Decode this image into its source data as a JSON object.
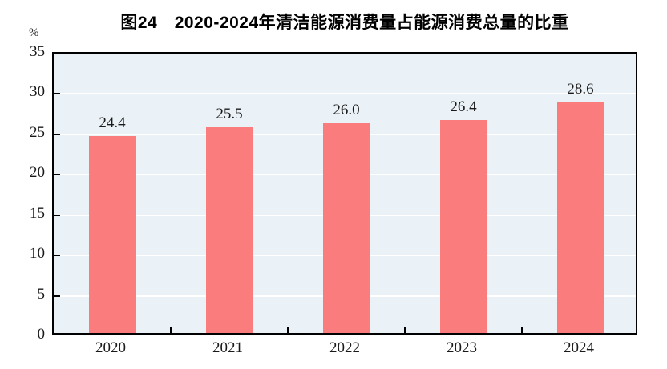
{
  "chart_data": {
    "type": "bar",
    "title": "图24　2020-2024年清洁能源消费量占能源消费总量的比重",
    "unit": "%",
    "categories": [
      "2020",
      "2021",
      "2022",
      "2023",
      "2024"
    ],
    "values": [
      24.4,
      25.5,
      26.0,
      26.4,
      28.6
    ],
    "value_labels": [
      "24.4",
      "25.5",
      "26.0",
      "26.4",
      "28.6"
    ],
    "xlabel": "",
    "ylabel": "%",
    "ylim": [
      0,
      35
    ],
    "yticks": [
      0,
      5,
      10,
      15,
      20,
      25,
      30,
      35
    ],
    "grid": true,
    "legend_position": "none",
    "colors": {
      "bar": "#FA7C7C",
      "plot_background": "#EBF2F7",
      "gridline": "#FFFFFF",
      "axis": "#000000",
      "text": "#1A1A1A"
    }
  }
}
